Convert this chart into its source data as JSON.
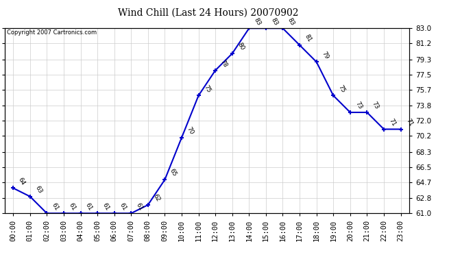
{
  "title": "Wind Chill (Last 24 Hours) 20070902",
  "copyright": "Copyright 2007 Cartronics.com",
  "hours": [
    0,
    1,
    2,
    3,
    4,
    5,
    6,
    7,
    8,
    9,
    10,
    11,
    12,
    13,
    14,
    15,
    16,
    17,
    18,
    19,
    20,
    21,
    22,
    23
  ],
  "x_labels": [
    "00:00",
    "01:00",
    "02:00",
    "03:00",
    "04:00",
    "05:00",
    "06:00",
    "07:00",
    "08:00",
    "09:00",
    "10:00",
    "11:00",
    "12:00",
    "13:00",
    "14:00",
    "15:00",
    "16:00",
    "17:00",
    "18:00",
    "19:00",
    "20:00",
    "21:00",
    "22:00",
    "23:00"
  ],
  "values": [
    64,
    63,
    61,
    61,
    61,
    61,
    61,
    61,
    62,
    65,
    70,
    75,
    78,
    80,
    83,
    83,
    83,
    81,
    79,
    75,
    73,
    73,
    71,
    71
  ],
  "ylim_min": 61.0,
  "ylim_max": 83.0,
  "y_ticks": [
    61.0,
    62.8,
    64.7,
    66.5,
    68.3,
    70.2,
    72.0,
    73.8,
    75.7,
    77.5,
    79.3,
    81.2,
    83.0
  ],
  "line_color": "#0000cc",
  "marker": "+",
  "marker_size": 5,
  "marker_color": "#0000cc",
  "grid_color": "#cccccc",
  "bg_color": "#ffffff",
  "border_color": "#000000",
  "label_fontsize": 7.5,
  "title_fontsize": 10,
  "annotation_fontsize": 6.5,
  "copyright_fontsize": 6
}
